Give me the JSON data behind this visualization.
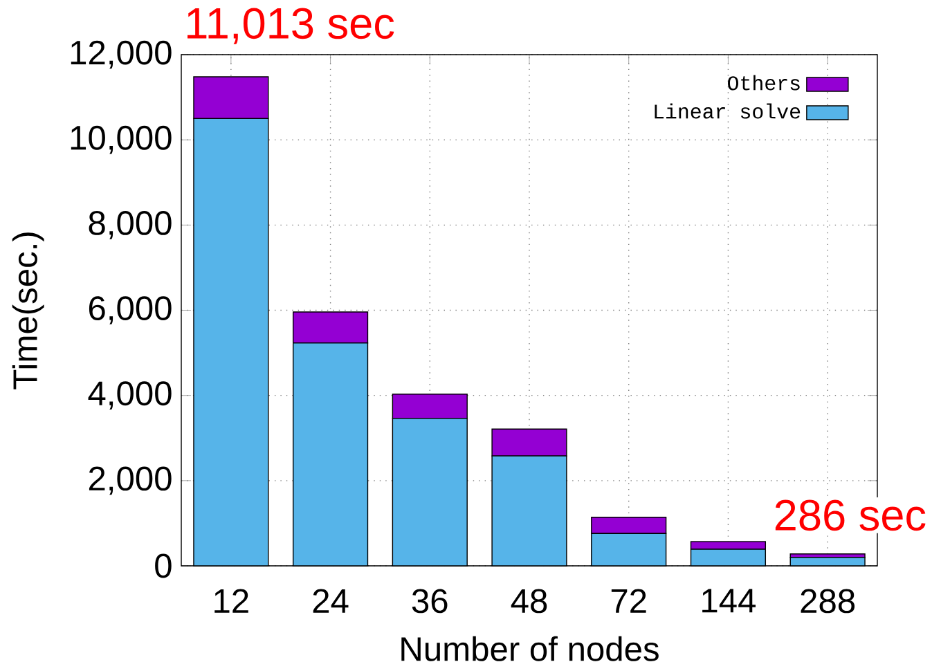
{
  "chart_data": {
    "type": "bar",
    "stacked": true,
    "xlabel": "Number of nodes",
    "ylabel": "Time(sec.)",
    "categories": [
      "12",
      "24",
      "36",
      "48",
      "72",
      "144",
      "288"
    ],
    "series": [
      {
        "name": "Linear solve",
        "color": "#56b4e9",
        "values": [
          10500,
          5230,
          3460,
          2580,
          760,
          390,
          200
        ]
      },
      {
        "name": "Others",
        "color": "#9400d3",
        "values": [
          980,
          730,
          570,
          630,
          380,
          180,
          80
        ]
      }
    ],
    "ylim": [
      0,
      12000
    ],
    "yticks": [
      {
        "value": 0,
        "label": "0"
      },
      {
        "value": 2000,
        "label": "2,000"
      },
      {
        "value": 4000,
        "label": "4,000"
      },
      {
        "value": 6000,
        "label": "6,000"
      },
      {
        "value": 8000,
        "label": "8,000"
      },
      {
        "value": 10000,
        "label": "10,000"
      },
      {
        "value": 12000,
        "label": "12,000"
      }
    ],
    "grid": true,
    "legend": "top right",
    "annotations": [
      "11,013 sec",
      "286 sec"
    ]
  }
}
